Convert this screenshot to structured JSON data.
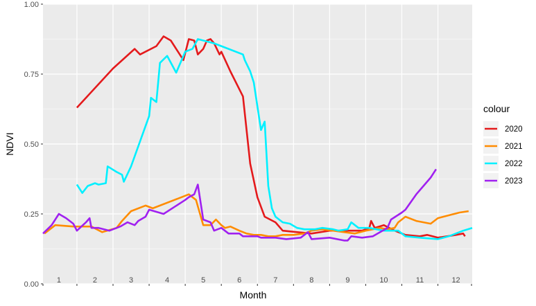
{
  "chart_data": {
    "type": "line",
    "xlabel": "Month",
    "ylabel": "NDVI",
    "x_ticks": [
      "1",
      "2",
      "3",
      "4",
      "5",
      "6",
      "7",
      "8",
      "9",
      "10",
      "11",
      "12"
    ],
    "xlim": [
      0.56,
      12.45
    ],
    "ylim": [
      0,
      1
    ],
    "y_ticks": [
      "0.00",
      "0.25",
      "0.50",
      "0.75",
      "1.00"
    ],
    "grid": true,
    "legend_title": "colour",
    "legend_position": "right",
    "series": [
      {
        "name": "2020",
        "color": "#e41a1c",
        "points": [
          [
            1.5,
            0.63
          ],
          [
            2.5,
            0.77
          ],
          [
            3.1,
            0.84
          ],
          [
            3.25,
            0.82
          ],
          [
            3.7,
            0.85
          ],
          [
            3.9,
            0.885
          ],
          [
            4.1,
            0.87
          ],
          [
            4.3,
            0.83
          ],
          [
            4.45,
            0.8
          ],
          [
            4.6,
            0.875
          ],
          [
            4.75,
            0.87
          ],
          [
            4.85,
            0.82
          ],
          [
            5.0,
            0.84
          ],
          [
            5.1,
            0.87
          ],
          [
            5.2,
            0.875
          ],
          [
            5.3,
            0.86
          ],
          [
            5.45,
            0.82
          ],
          [
            5.5,
            0.83
          ],
          [
            5.75,
            0.76
          ],
          [
            6.1,
            0.67
          ],
          [
            6.3,
            0.43
          ],
          [
            6.5,
            0.31
          ],
          [
            6.7,
            0.24
          ],
          [
            7.0,
            0.22
          ],
          [
            7.2,
            0.19
          ],
          [
            7.6,
            0.185
          ],
          [
            8.0,
            0.18
          ],
          [
            8.5,
            0.19
          ],
          [
            9.0,
            0.19
          ],
          [
            9.4,
            0.19
          ],
          [
            9.6,
            0.2
          ],
          [
            9.65,
            0.225
          ],
          [
            9.75,
            0.2
          ],
          [
            10.0,
            0.21
          ],
          [
            10.3,
            0.19
          ],
          [
            10.6,
            0.175
          ],
          [
            11.0,
            0.17
          ],
          [
            11.2,
            0.175
          ],
          [
            11.5,
            0.165
          ],
          [
            12.0,
            0.175
          ],
          [
            12.2,
            0.18
          ],
          [
            12.25,
            0.17
          ]
        ]
      },
      {
        "name": "2021",
        "color": "#ff8c00",
        "points": [
          [
            0.6,
            0.18
          ],
          [
            0.9,
            0.21
          ],
          [
            1.4,
            0.205
          ],
          [
            1.9,
            0.205
          ],
          [
            2.2,
            0.185
          ],
          [
            2.6,
            0.2
          ],
          [
            2.75,
            0.225
          ],
          [
            3.0,
            0.26
          ],
          [
            3.4,
            0.28
          ],
          [
            3.6,
            0.27
          ],
          [
            3.8,
            0.28
          ],
          [
            4.2,
            0.3
          ],
          [
            4.4,
            0.31
          ],
          [
            4.6,
            0.32
          ],
          [
            4.8,
            0.3
          ],
          [
            5.0,
            0.21
          ],
          [
            5.2,
            0.21
          ],
          [
            5.35,
            0.23
          ],
          [
            5.5,
            0.21
          ],
          [
            5.6,
            0.2
          ],
          [
            5.75,
            0.205
          ],
          [
            6.0,
            0.19
          ],
          [
            6.2,
            0.18
          ],
          [
            6.4,
            0.175
          ],
          [
            6.6,
            0.175
          ],
          [
            6.8,
            0.17
          ],
          [
            7.0,
            0.17
          ],
          [
            7.2,
            0.175
          ],
          [
            7.5,
            0.175
          ],
          [
            7.8,
            0.18
          ],
          [
            8.0,
            0.19
          ],
          [
            8.3,
            0.195
          ],
          [
            8.6,
            0.19
          ],
          [
            8.9,
            0.185
          ],
          [
            9.2,
            0.18
          ],
          [
            9.5,
            0.19
          ],
          [
            9.9,
            0.2
          ],
          [
            10.1,
            0.195
          ],
          [
            10.3,
            0.2
          ],
          [
            10.4,
            0.22
          ],
          [
            10.6,
            0.24
          ],
          [
            10.9,
            0.225
          ],
          [
            11.3,
            0.215
          ],
          [
            11.5,
            0.235
          ],
          [
            11.8,
            0.245
          ],
          [
            12.1,
            0.255
          ],
          [
            12.35,
            0.26
          ]
        ]
      },
      {
        "name": "2022",
        "color": "#00f0ff",
        "points": [
          [
            1.5,
            0.355
          ],
          [
            1.65,
            0.325
          ],
          [
            1.8,
            0.35
          ],
          [
            2.0,
            0.36
          ],
          [
            2.1,
            0.355
          ],
          [
            2.3,
            0.36
          ],
          [
            2.35,
            0.42
          ],
          [
            2.6,
            0.4
          ],
          [
            2.75,
            0.39
          ],
          [
            2.8,
            0.365
          ],
          [
            3.0,
            0.42
          ],
          [
            3.5,
            0.6
          ],
          [
            3.55,
            0.665
          ],
          [
            3.7,
            0.65
          ],
          [
            3.8,
            0.79
          ],
          [
            4.0,
            0.815
          ],
          [
            4.25,
            0.755
          ],
          [
            4.5,
            0.83
          ],
          [
            4.7,
            0.84
          ],
          [
            4.85,
            0.875
          ],
          [
            5.0,
            0.87
          ],
          [
            5.3,
            0.86
          ],
          [
            5.7,
            0.84
          ],
          [
            6.1,
            0.82
          ],
          [
            6.15,
            0.8
          ],
          [
            6.3,
            0.76
          ],
          [
            6.4,
            0.72
          ],
          [
            6.6,
            0.55
          ],
          [
            6.7,
            0.58
          ],
          [
            6.8,
            0.35
          ],
          [
            6.9,
            0.27
          ],
          [
            7.0,
            0.24
          ],
          [
            7.2,
            0.22
          ],
          [
            7.4,
            0.215
          ],
          [
            7.6,
            0.2
          ],
          [
            7.8,
            0.195
          ],
          [
            8.1,
            0.195
          ],
          [
            8.3,
            0.2
          ],
          [
            8.6,
            0.195
          ],
          [
            8.75,
            0.19
          ],
          [
            9.0,
            0.195
          ],
          [
            9.1,
            0.22
          ],
          [
            9.3,
            0.2
          ],
          [
            9.6,
            0.2
          ],
          [
            10.0,
            0.19
          ],
          [
            10.4,
            0.19
          ],
          [
            10.6,
            0.17
          ],
          [
            11.0,
            0.165
          ],
          [
            11.5,
            0.16
          ],
          [
            11.8,
            0.17
          ],
          [
            12.2,
            0.19
          ],
          [
            12.45,
            0.2
          ]
        ]
      },
      {
        "name": "2023",
        "color": "#a020f0",
        "points": [
          [
            0.56,
            0.18
          ],
          [
            0.8,
            0.21
          ],
          [
            1.0,
            0.25
          ],
          [
            1.2,
            0.235
          ],
          [
            1.4,
            0.215
          ],
          [
            1.5,
            0.19
          ],
          [
            1.75,
            0.22
          ],
          [
            1.85,
            0.235
          ],
          [
            1.9,
            0.2
          ],
          [
            2.1,
            0.2
          ],
          [
            2.4,
            0.19
          ],
          [
            2.7,
            0.205
          ],
          [
            2.9,
            0.22
          ],
          [
            3.1,
            0.21
          ],
          [
            3.2,
            0.225
          ],
          [
            3.4,
            0.24
          ],
          [
            3.5,
            0.265
          ],
          [
            3.9,
            0.25
          ],
          [
            4.5,
            0.3
          ],
          [
            4.6,
            0.31
          ],
          [
            4.75,
            0.32
          ],
          [
            4.85,
            0.355
          ],
          [
            5.0,
            0.23
          ],
          [
            5.2,
            0.22
          ],
          [
            5.3,
            0.19
          ],
          [
            5.5,
            0.2
          ],
          [
            5.7,
            0.18
          ],
          [
            6.0,
            0.18
          ],
          [
            6.1,
            0.17
          ],
          [
            6.5,
            0.17
          ],
          [
            6.6,
            0.165
          ],
          [
            7.0,
            0.165
          ],
          [
            7.3,
            0.16
          ],
          [
            7.7,
            0.165
          ],
          [
            7.9,
            0.185
          ],
          [
            8.0,
            0.16
          ],
          [
            8.5,
            0.165
          ],
          [
            8.9,
            0.155
          ],
          [
            9.0,
            0.155
          ],
          [
            9.1,
            0.17
          ],
          [
            9.4,
            0.165
          ],
          [
            9.7,
            0.17
          ],
          [
            9.9,
            0.185
          ],
          [
            10.1,
            0.2
          ],
          [
            10.2,
            0.23
          ],
          [
            10.5,
            0.255
          ],
          [
            10.6,
            0.265
          ],
          [
            10.9,
            0.32
          ],
          [
            11.1,
            0.35
          ],
          [
            11.3,
            0.38
          ],
          [
            11.45,
            0.41
          ]
        ]
      }
    ]
  }
}
